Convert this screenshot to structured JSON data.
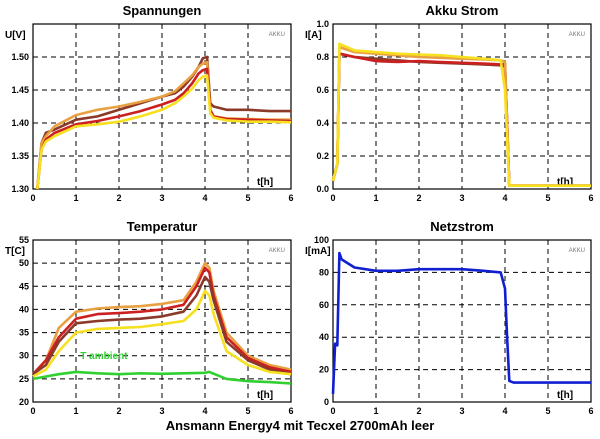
{
  "footer": "Ansmann Energy4 mit Tecxel 2700mAh leer",
  "chart_data": [
    {
      "type": "line",
      "title": "Spannungen",
      "ylabel": "U[V]",
      "xlabel": "t[h]",
      "watermark": "AKKU",
      "xlim": [
        0,
        6
      ],
      "ylim": [
        1.3,
        1.55
      ],
      "xticks": [
        "0",
        "1",
        "2",
        "3",
        "4",
        "5",
        "6"
      ],
      "yticks": [
        "1.30",
        "1.35",
        "1.40",
        "1.45",
        "1.50"
      ],
      "grid": true,
      "series": [
        {
          "color": "#8B3A2A",
          "x": [
            0.1,
            0.2,
            0.3,
            0.5,
            1,
            1.5,
            2,
            2.5,
            3,
            3.3,
            3.5,
            3.7,
            3.85,
            3.95,
            4.05,
            4.12,
            4.2,
            4.5,
            5,
            5.5,
            6
          ],
          "y": [
            1.3,
            1.37,
            1.385,
            1.39,
            1.405,
            1.41,
            1.42,
            1.43,
            1.44,
            1.445,
            1.455,
            1.47,
            1.485,
            1.498,
            1.5,
            1.43,
            1.425,
            1.42,
            1.42,
            1.418,
            1.418
          ]
        },
        {
          "color": "#E8A040",
          "x": [
            0.1,
            0.2,
            0.3,
            0.5,
            1,
            1.5,
            2,
            2.5,
            3,
            3.3,
            3.5,
            3.7,
            3.85,
            3.95,
            4.05,
            4.12,
            4.2,
            4.5,
            5,
            5.5,
            6
          ],
          "y": [
            1.3,
            1.37,
            1.38,
            1.395,
            1.412,
            1.42,
            1.425,
            1.432,
            1.44,
            1.448,
            1.46,
            1.472,
            1.485,
            1.49,
            1.492,
            1.42,
            1.41,
            1.407,
            1.406,
            1.405,
            1.405
          ]
        },
        {
          "color": "#CC2020",
          "x": [
            0.1,
            0.2,
            0.3,
            0.5,
            1,
            1.5,
            2,
            2.5,
            3,
            3.3,
            3.5,
            3.7,
            3.85,
            3.95,
            4.05,
            4.12,
            4.2,
            4.5,
            5,
            5.5,
            6
          ],
          "y": [
            1.3,
            1.36,
            1.375,
            1.385,
            1.398,
            1.403,
            1.41,
            1.418,
            1.428,
            1.435,
            1.445,
            1.46,
            1.475,
            1.48,
            1.482,
            1.42,
            1.41,
            1.406,
            1.405,
            1.404,
            1.403
          ]
        },
        {
          "color": "#F6E020",
          "x": [
            0.1,
            0.2,
            0.3,
            0.5,
            1,
            1.5,
            2,
            2.5,
            3,
            3.3,
            3.5,
            3.7,
            3.85,
            3.95,
            4.05,
            4.12,
            4.2,
            4.5,
            5,
            5.5,
            6
          ],
          "y": [
            1.3,
            1.36,
            1.372,
            1.38,
            1.395,
            1.398,
            1.402,
            1.41,
            1.42,
            1.43,
            1.44,
            1.452,
            1.465,
            1.47,
            1.472,
            1.415,
            1.408,
            1.404,
            1.402,
            1.402,
            1.401
          ]
        }
      ]
    },
    {
      "type": "line",
      "title": "Akku Strom",
      "ylabel": "I[A]",
      "xlabel": "t[h]",
      "watermark": "AKKU",
      "xlim": [
        0,
        6
      ],
      "ylim": [
        0,
        1.0
      ],
      "xticks": [
        "0",
        "1",
        "2",
        "3",
        "4",
        "5",
        "6"
      ],
      "yticks": [
        "0.0",
        "0.2",
        "0.4",
        "0.6",
        "0.8",
        "1.0"
      ],
      "grid": true,
      "series": [
        {
          "color": "#8B3A2A",
          "x": [
            0,
            0.05,
            0.1,
            0.15,
            0.5,
            1,
            1.5,
            2,
            2.5,
            3,
            3.5,
            3.9,
            4.0,
            4.05,
            4.1,
            4.15,
            4.2,
            5,
            6
          ],
          "y": [
            0.05,
            0.1,
            0.15,
            0.82,
            0.8,
            0.79,
            0.78,
            0.77,
            0.765,
            0.76,
            0.755,
            0.75,
            0.76,
            0.4,
            0.02,
            0.02,
            0.02,
            0.02,
            0.02
          ]
        },
        {
          "color": "#CC2020",
          "x": [
            0,
            0.05,
            0.1,
            0.15,
            0.5,
            1,
            1.5,
            2,
            2.5,
            3,
            3.5,
            3.9,
            4.0,
            4.05,
            4.1,
            4.15,
            4.2,
            5,
            6
          ],
          "y": [
            0.05,
            0.1,
            0.15,
            0.82,
            0.8,
            0.775,
            0.77,
            0.775,
            0.77,
            0.765,
            0.76,
            0.755,
            0.74,
            0.4,
            0.02,
            0.02,
            0.02,
            0.02,
            0.02
          ]
        },
        {
          "color": "#E8A040",
          "x": [
            0,
            0.05,
            0.1,
            0.15,
            0.5,
            1,
            1.5,
            2,
            2.5,
            3,
            3.5,
            3.9,
            4.0,
            4.05,
            4.1,
            4.15,
            4.2,
            5,
            6
          ],
          "y": [
            0.05,
            0.1,
            0.15,
            0.86,
            0.83,
            0.82,
            0.81,
            0.8,
            0.795,
            0.79,
            0.785,
            0.78,
            0.77,
            0.4,
            0.02,
            0.02,
            0.02,
            0.02,
            0.02
          ]
        },
        {
          "color": "#F6E020",
          "x": [
            0,
            0.05,
            0.1,
            0.15,
            0.5,
            1,
            1.5,
            2,
            2.5,
            3,
            3.5,
            3.9,
            4.0,
            4.05,
            4.1,
            4.15,
            4.2,
            5,
            6
          ],
          "y": [
            0.05,
            0.1,
            0.15,
            0.88,
            0.84,
            0.83,
            0.82,
            0.815,
            0.81,
            0.8,
            0.79,
            0.78,
            0.6,
            0.3,
            0.02,
            0.02,
            0.02,
            0.02,
            0.02
          ]
        }
      ]
    },
    {
      "type": "line",
      "title": "Temperatur",
      "ylabel": "T[C]",
      "xlabel": "t[h]",
      "watermark": "AKKU",
      "annotation": "T ambient",
      "xlim": [
        0,
        6
      ],
      "ylim": [
        20,
        55
      ],
      "xticks": [
        "0",
        "1",
        "2",
        "3",
        "4",
        "5",
        "6"
      ],
      "yticks": [
        "20",
        "25",
        "30",
        "35",
        "40",
        "45",
        "50",
        "55"
      ],
      "grid": true,
      "series": [
        {
          "color": "#E8A040",
          "x": [
            0,
            0.3,
            0.6,
            1,
            1.5,
            2,
            2.5,
            3,
            3.5,
            3.8,
            4.0,
            4.1,
            4.2,
            4.5,
            5,
            5.5,
            6
          ],
          "y": [
            26,
            29,
            36,
            39.5,
            40.2,
            40.5,
            40.7,
            41.2,
            42,
            46,
            50,
            49,
            44,
            35,
            30,
            28,
            27
          ]
        },
        {
          "color": "#CC2020",
          "x": [
            0,
            0.3,
            0.6,
            1,
            1.5,
            2,
            2.5,
            3,
            3.5,
            3.8,
            4.0,
            4.1,
            4.2,
            4.5,
            5,
            5.5,
            6
          ],
          "y": [
            26,
            29,
            34,
            38,
            39,
            39.2,
            39.5,
            40,
            41,
            45,
            49,
            48,
            43,
            34,
            29.5,
            27.5,
            26.5
          ]
        },
        {
          "color": "#8B3A2A",
          "x": [
            0,
            0.3,
            0.6,
            1,
            1.5,
            2,
            2.5,
            3,
            3.5,
            3.8,
            4.0,
            4.1,
            4.2,
            4.5,
            5,
            5.5,
            6
          ],
          "y": [
            26,
            28,
            33,
            37,
            37.5,
            37.8,
            38,
            38.5,
            39.5,
            43,
            47,
            46,
            42,
            33,
            29,
            27,
            26
          ]
        },
        {
          "color": "#F6E020",
          "x": [
            0,
            0.3,
            0.6,
            1,
            1.5,
            2,
            2.5,
            3,
            3.5,
            3.8,
            4.0,
            4.1,
            4.2,
            4.5,
            5,
            5.5,
            6
          ],
          "y": [
            25.5,
            27,
            31,
            35,
            35.8,
            36,
            36.2,
            36.8,
            37.5,
            40,
            44,
            43,
            39,
            31,
            28,
            26.5,
            26
          ]
        },
        {
          "color": "#30D030",
          "x": [
            0,
            0.3,
            0.6,
            1,
            1.5,
            2,
            2.5,
            3,
            3.5,
            4,
            4.1,
            4.5,
            5,
            5.5,
            6
          ],
          "y": [
            25,
            25.5,
            26,
            26.5,
            26.2,
            26,
            26.2,
            26.1,
            26.2,
            26.3,
            26.5,
            25,
            24.5,
            24.3,
            24
          ]
        }
      ]
    },
    {
      "type": "line",
      "title": "Netzstrom",
      "ylabel": "I[mA]",
      "xlabel": "t[h]",
      "watermark": "AKKU",
      "xlim": [
        0,
        6
      ],
      "ylim": [
        0,
        100
      ],
      "xticks": [
        "0",
        "1",
        "2",
        "3",
        "4",
        "5",
        "6"
      ],
      "yticks": [
        "0",
        "20",
        "40",
        "60",
        "80",
        "100"
      ],
      "grid": true,
      "series": [
        {
          "color": "#1020D0",
          "x": [
            0,
            0.05,
            0.1,
            0.15,
            0.2,
            0.5,
            1,
            1.5,
            2,
            2.5,
            3,
            3.5,
            3.9,
            4.0,
            4.05,
            4.1,
            4.2,
            4.5,
            5,
            5.5,
            6
          ],
          "y": [
            5,
            36,
            35,
            92,
            88,
            83,
            81,
            81,
            82,
            82,
            82,
            81,
            80,
            70,
            40,
            13,
            12,
            12,
            12,
            12,
            12
          ]
        }
      ]
    }
  ]
}
